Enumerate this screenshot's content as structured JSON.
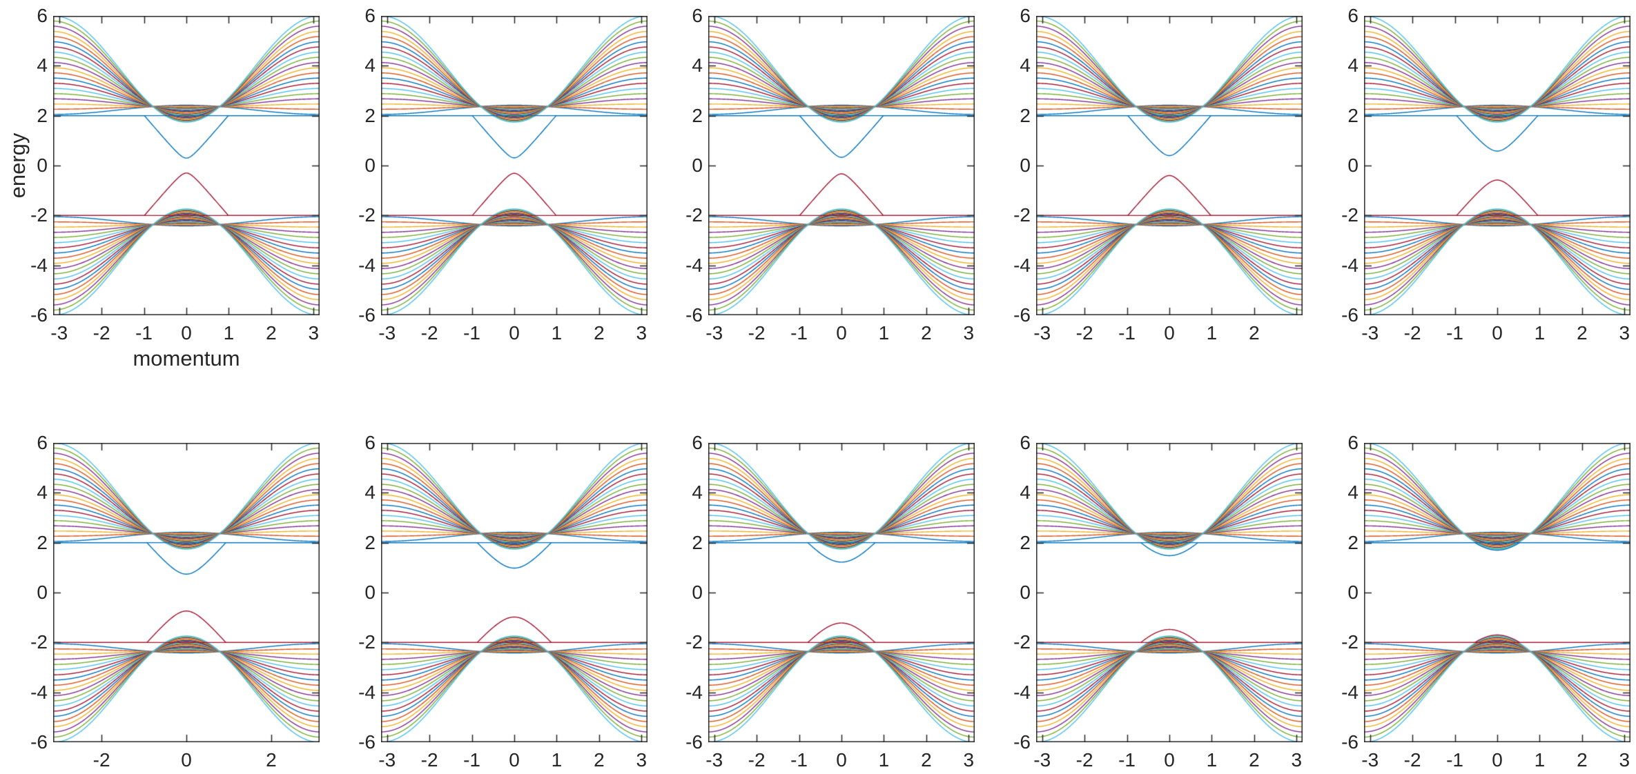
{
  "chart_data": {
    "type": "line",
    "title": "",
    "xlabel": "momentum",
    "ylabel": "energy",
    "layout": {
      "rows": 2,
      "cols": 5
    },
    "xlim": [
      -3.1416,
      3.1416
    ],
    "ylim": [
      -6,
      6
    ],
    "grid": "off",
    "legend": "none",
    "axes_color": "#262626",
    "background_color": "#ffffff",
    "palette": [
      "#0072BD",
      "#D95319",
      "#EDB120",
      "#7E2F8E",
      "#77AC30",
      "#4DBEEE",
      "#A2142F"
    ],
    "edge_state_upper_color": "#0072BD",
    "edge_state_lower_color": "#A2142F",
    "yticks": {
      "values": [
        6,
        4,
        2,
        0,
        -2,
        -4,
        -6
      ],
      "labels": [
        "6",
        "4",
        "2",
        "0",
        "-2",
        "-4",
        "-6"
      ]
    },
    "band_model": {
      "n_bulk_bands_per_cluster": 20,
      "bulk_energy_at_k0": [
        2.42,
        1.74
      ],
      "bulk_energy_at_kpi": [
        2.05,
        6.0
      ],
      "flat_edge_band_energy": 2.0,
      "edge_state_velocity": 2.0
    },
    "subplots": [
      {
        "row": 0,
        "col": 0,
        "edge_state_energy_at_k0": 0.3,
        "show_axis_labels": true,
        "xticks": {
          "values": [
            -3,
            -2,
            -1,
            0,
            1,
            2,
            3
          ],
          "labels": [
            "-3",
            "-2",
            "-1",
            "0",
            "1",
            "2",
            "3"
          ]
        }
      },
      {
        "row": 0,
        "col": 1,
        "edge_state_energy_at_k0": 0.31,
        "show_axis_labels": false,
        "xticks": {
          "values": [
            -3,
            -2,
            -1,
            0,
            1,
            2,
            3
          ],
          "labels": [
            "-3",
            "-2",
            "-1",
            "0",
            "1",
            "2",
            "3"
          ]
        }
      },
      {
        "row": 0,
        "col": 2,
        "edge_state_energy_at_k0": 0.33,
        "show_axis_labels": false,
        "xticks": {
          "values": [
            -3,
            -2,
            -1,
            0,
            1,
            2,
            3
          ],
          "labels": [
            "-3",
            "-2",
            "-1",
            "0",
            "1",
            "2",
            "3"
          ]
        }
      },
      {
        "row": 0,
        "col": 3,
        "edge_state_energy_at_k0": 0.4,
        "show_axis_labels": false,
        "xticks": {
          "values": [
            -3,
            -2,
            -1,
            0,
            1,
            2,
            3
          ],
          "labels": [
            "-3",
            "-2",
            "-1",
            "0",
            "1",
            "2",
            ""
          ]
        }
      },
      {
        "row": 0,
        "col": 4,
        "edge_state_energy_at_k0": 0.58,
        "show_axis_labels": false,
        "xticks": {
          "values": [
            -3,
            -2,
            -1,
            0,
            1,
            2,
            3
          ],
          "labels": [
            "-3",
            "-2",
            "-1",
            "0",
            "1",
            "2",
            "3"
          ]
        }
      },
      {
        "row": 1,
        "col": 0,
        "edge_state_energy_at_k0": 0.74,
        "show_axis_labels": false,
        "xticks": {
          "values": [
            -2,
            0,
            2
          ],
          "labels": [
            "-2",
            "0",
            "2"
          ]
        }
      },
      {
        "row": 1,
        "col": 1,
        "edge_state_energy_at_k0": 0.98,
        "show_axis_labels": false,
        "xticks": {
          "values": [
            -3,
            -2,
            -1,
            0,
            1,
            2,
            3
          ],
          "labels": [
            "-3",
            "-2",
            "-1",
            "0",
            "1",
            "2",
            "3"
          ]
        }
      },
      {
        "row": 1,
        "col": 2,
        "edge_state_energy_at_k0": 1.22,
        "show_axis_labels": false,
        "xticks": {
          "values": [
            -3,
            -2,
            -1,
            0,
            1,
            2,
            3
          ],
          "labels": [
            "-3",
            "-2",
            "-1",
            "0",
            "1",
            "2",
            "3"
          ]
        }
      },
      {
        "row": 1,
        "col": 3,
        "edge_state_energy_at_k0": 1.48,
        "show_axis_labels": false,
        "xticks": {
          "values": [
            -3,
            -2,
            -1,
            0,
            1,
            2,
            3
          ],
          "labels": [
            "-3",
            "-2",
            "-1",
            "0",
            "1",
            "2",
            "3"
          ]
        }
      },
      {
        "row": 1,
        "col": 4,
        "edge_state_energy_at_k0": 1.7,
        "show_axis_labels": false,
        "xticks": {
          "values": [
            -3,
            -2,
            -1,
            0,
            1,
            2,
            3
          ],
          "labels": [
            "-3",
            "-2",
            "-1",
            "0",
            "1",
            "2",
            "3"
          ]
        }
      }
    ]
  }
}
